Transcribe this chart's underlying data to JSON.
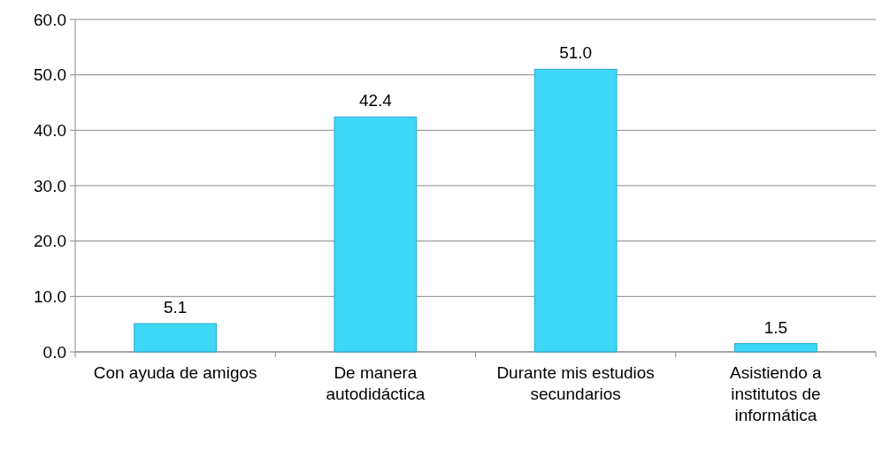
{
  "chart_data": {
    "type": "bar",
    "categories": [
      "Con ayuda de amigos",
      "De manera autodidáctica",
      "Durante mis estudios secundarios",
      "Asistiendo a institutos de informática"
    ],
    "values": [
      5.1,
      42.4,
      51.0,
      1.5
    ],
    "color": "#3dd8f8",
    "ylim": [
      0,
      60
    ],
    "yticks": [
      {
        "value": 0,
        "label": "0.0"
      },
      {
        "value": 10,
        "label": "10.0"
      },
      {
        "value": 20,
        "label": "20.0"
      },
      {
        "value": 30,
        "label": "30.0"
      },
      {
        "value": 40,
        "label": "40.0"
      },
      {
        "value": 50,
        "label": "50.0"
      },
      {
        "value": 60,
        "label": "60.0"
      }
    ],
    "grid": "y",
    "value_labels": [
      "5.1",
      "42.4",
      "51.0",
      "1.5"
    ]
  }
}
